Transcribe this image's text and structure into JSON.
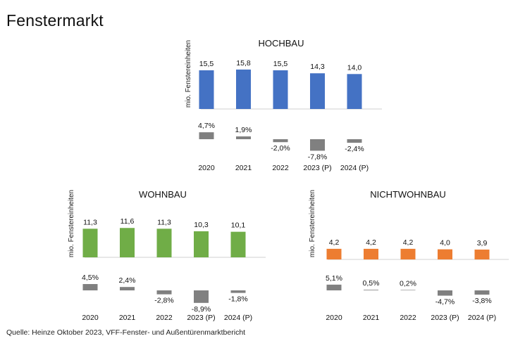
{
  "page": {
    "title": "Fenstermarkt",
    "source": "Quelle: Heinze Oktober 2023, VFF-Fenster- und Außentürenmarktbericht"
  },
  "chart_data": [
    {
      "type": "bar",
      "title": "HOCHBAU",
      "ylabel": "mio. Fenstereinheiten",
      "categories": [
        "2020",
        "2021",
        "2022",
        "2023 (P)",
        "2024 (P)"
      ],
      "values": [
        15.5,
        15.8,
        15.5,
        14.3,
        14.0
      ],
      "value_labels": [
        "15,5",
        "15,8",
        "15,5",
        "14,3",
        "14,0"
      ],
      "change_percent": [
        4.7,
        1.9,
        -2.0,
        -7.8,
        -2.4
      ],
      "change_labels": [
        "4,7%",
        "1,9%",
        "-2,0%",
        "-7,8%",
        "-2,4%"
      ],
      "bar_color": "#4472C4",
      "change_color": "#808080"
    },
    {
      "type": "bar",
      "title": "WOHNBAU",
      "ylabel": "mio. Fenstereinheiten",
      "categories": [
        "2020",
        "2021",
        "2022",
        "2023 (P)",
        "2024 (P)"
      ],
      "values": [
        11.3,
        11.6,
        11.3,
        10.3,
        10.1
      ],
      "value_labels": [
        "11,3",
        "11,6",
        "11,3",
        "10,3",
        "10,1"
      ],
      "change_percent": [
        4.5,
        2.4,
        -2.8,
        -8.9,
        -1.8
      ],
      "change_labels": [
        "4,5%",
        "2,4%",
        "-2,8%",
        "-8,9%",
        "-1,8%"
      ],
      "bar_color": "#70AD47",
      "change_color": "#808080"
    },
    {
      "type": "bar",
      "title": "NICHTWOHNBAU",
      "ylabel": "mio. Fenstereinheiten",
      "categories": [
        "2020",
        "2021",
        "2022",
        "2023 (P)",
        "2024 (P)"
      ],
      "values": [
        4.2,
        4.2,
        4.2,
        4.0,
        3.9
      ],
      "value_labels": [
        "4,2",
        "4,2",
        "4,2",
        "4,0",
        "3,9"
      ],
      "change_percent": [
        5.1,
        0.5,
        0.2,
        -4.7,
        -3.8
      ],
      "change_labels": [
        "5,1%",
        "0,5%",
        "0,2%",
        "-4,7%",
        "-3,8%"
      ],
      "bar_color": "#ED7D31",
      "change_color": "#808080"
    }
  ]
}
